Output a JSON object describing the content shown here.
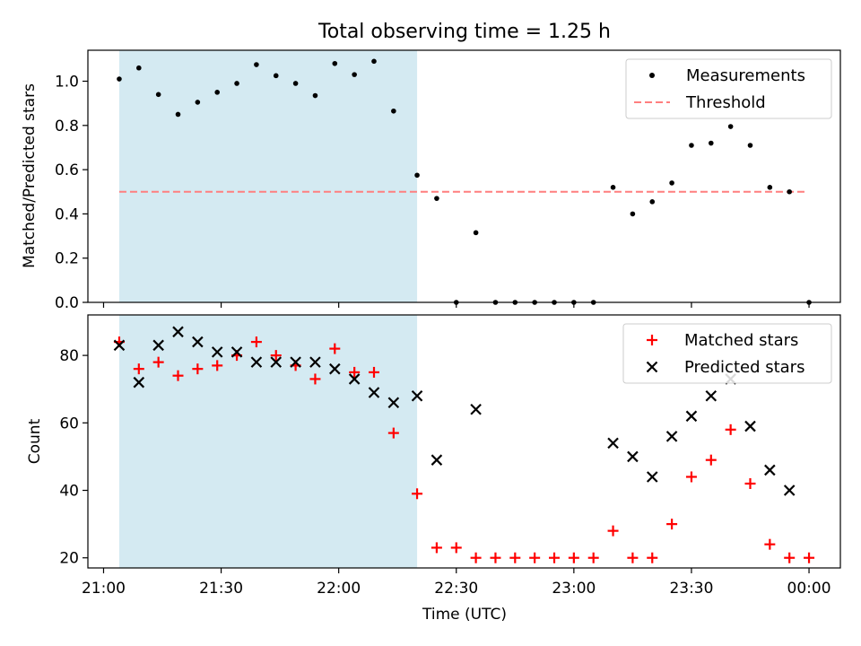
{
  "title": "Total observing time = 1.25 h",
  "colors": {
    "shade": "#add8e6",
    "threshold": "#ff7f7f",
    "measurement": "#000000",
    "matched": "#ff0000",
    "predicted": "#000000"
  },
  "chart_data": [
    {
      "type": "scatter",
      "panel": "top",
      "title": "Total observing time = 1.25 h",
      "xlabel": "",
      "ylabel": "Matched/Predicted stars",
      "xlim": [
        "20:56",
        "00:08"
      ],
      "ylim": [
        0,
        1.14
      ],
      "yticks": [
        0.0,
        0.2,
        0.4,
        0.6,
        0.8,
        1.0
      ],
      "ytick_labels": [
        "0.0",
        "0.2",
        "0.4",
        "0.6",
        "0.8",
        "1.0"
      ],
      "shaded_interval": [
        "21:04",
        "22:20"
      ],
      "legend_position": "upper right",
      "series": [
        {
          "name": "Measurements",
          "marker": "dot",
          "x": [
            "21:04",
            "21:09",
            "21:14",
            "21:19",
            "21:24",
            "21:29",
            "21:34",
            "21:39",
            "21:44",
            "21:49",
            "21:54",
            "21:59",
            "22:04",
            "22:09",
            "22:14",
            "22:20",
            "22:25",
            "22:30",
            "22:35",
            "22:40",
            "22:45",
            "22:50",
            "22:55",
            "23:00",
            "23:05",
            "23:10",
            "23:15",
            "23:20",
            "23:25",
            "23:30",
            "23:35",
            "23:40",
            "23:45",
            "23:50",
            "23:55",
            "00:00"
          ],
          "y": [
            1.01,
            1.06,
            0.94,
            0.85,
            0.905,
            0.95,
            0.99,
            1.075,
            1.025,
            0.99,
            0.935,
            1.08,
            1.03,
            1.09,
            0.865,
            0.575,
            0.47,
            0.0,
            0.315,
            0.0,
            0.0,
            0.0,
            0.0,
            0.0,
            0.0,
            0.52,
            0.4,
            0.455,
            0.54,
            0.71,
            0.72,
            0.795,
            0.71,
            0.52,
            0.5,
            0.0
          ]
        },
        {
          "name": "Threshold",
          "style": "dashed",
          "x": [
            "21:04",
            "23:59"
          ],
          "y": [
            0.5,
            0.5
          ]
        }
      ]
    },
    {
      "type": "scatter",
      "panel": "bottom",
      "xlabel": "Time (UTC)",
      "ylabel": "Count",
      "xlim": [
        "20:56",
        "00:08"
      ],
      "ylim": [
        17,
        92
      ],
      "xticks": [
        "21:00",
        "21:30",
        "22:00",
        "22:30",
        "23:00",
        "23:30",
        "00:00"
      ],
      "xtick_labels": [
        "21:00",
        "21:30",
        "22:00",
        "22:30",
        "23:00",
        "23:30",
        "00:00"
      ],
      "yticks": [
        20,
        40,
        60,
        80
      ],
      "ytick_labels": [
        "20",
        "40",
        "60",
        "80"
      ],
      "shaded_interval": [
        "21:04",
        "22:20"
      ],
      "legend_position": "upper right",
      "series": [
        {
          "name": "Matched stars",
          "marker": "plus",
          "x": [
            "21:04",
            "21:09",
            "21:14",
            "21:19",
            "21:24",
            "21:29",
            "21:34",
            "21:39",
            "21:44",
            "21:49",
            "21:54",
            "21:59",
            "22:04",
            "22:09",
            "22:14",
            "22:20",
            "22:25",
            "22:30",
            "22:35",
            "22:40",
            "22:45",
            "22:50",
            "22:55",
            "23:00",
            "23:05",
            "23:10",
            "23:15",
            "23:20",
            "23:25",
            "23:30",
            "23:35",
            "23:40",
            "23:45",
            "23:50",
            "23:55",
            "00:00"
          ],
          "y": [
            84,
            76,
            78,
            74,
            76,
            77,
            80,
            84,
            80,
            77,
            73,
            82,
            75,
            75,
            57,
            39,
            23,
            23,
            20,
            20,
            20,
            20,
            20,
            20,
            20,
            28,
            20,
            20,
            30,
            44,
            49,
            58,
            42,
            24,
            20,
            20
          ]
        },
        {
          "name": "Predicted stars",
          "marker": "x",
          "x": [
            "21:04",
            "21:09",
            "21:14",
            "21:19",
            "21:24",
            "21:29",
            "21:34",
            "21:39",
            "21:44",
            "21:49",
            "21:54",
            "21:59",
            "22:04",
            "22:09",
            "22:14",
            "22:20",
            "22:25",
            "22:35",
            "23:10",
            "23:15",
            "23:20",
            "23:25",
            "23:30",
            "23:35",
            "23:40",
            "23:45",
            "23:50",
            "23:55"
          ],
          "y": [
            83,
            72,
            83,
            87,
            84,
            81,
            81,
            78,
            78,
            78,
            78,
            76,
            73,
            69,
            66,
            68,
            49,
            64,
            54,
            50,
            44,
            56,
            62,
            68,
            73,
            59,
            46,
            40
          ]
        }
      ]
    }
  ]
}
